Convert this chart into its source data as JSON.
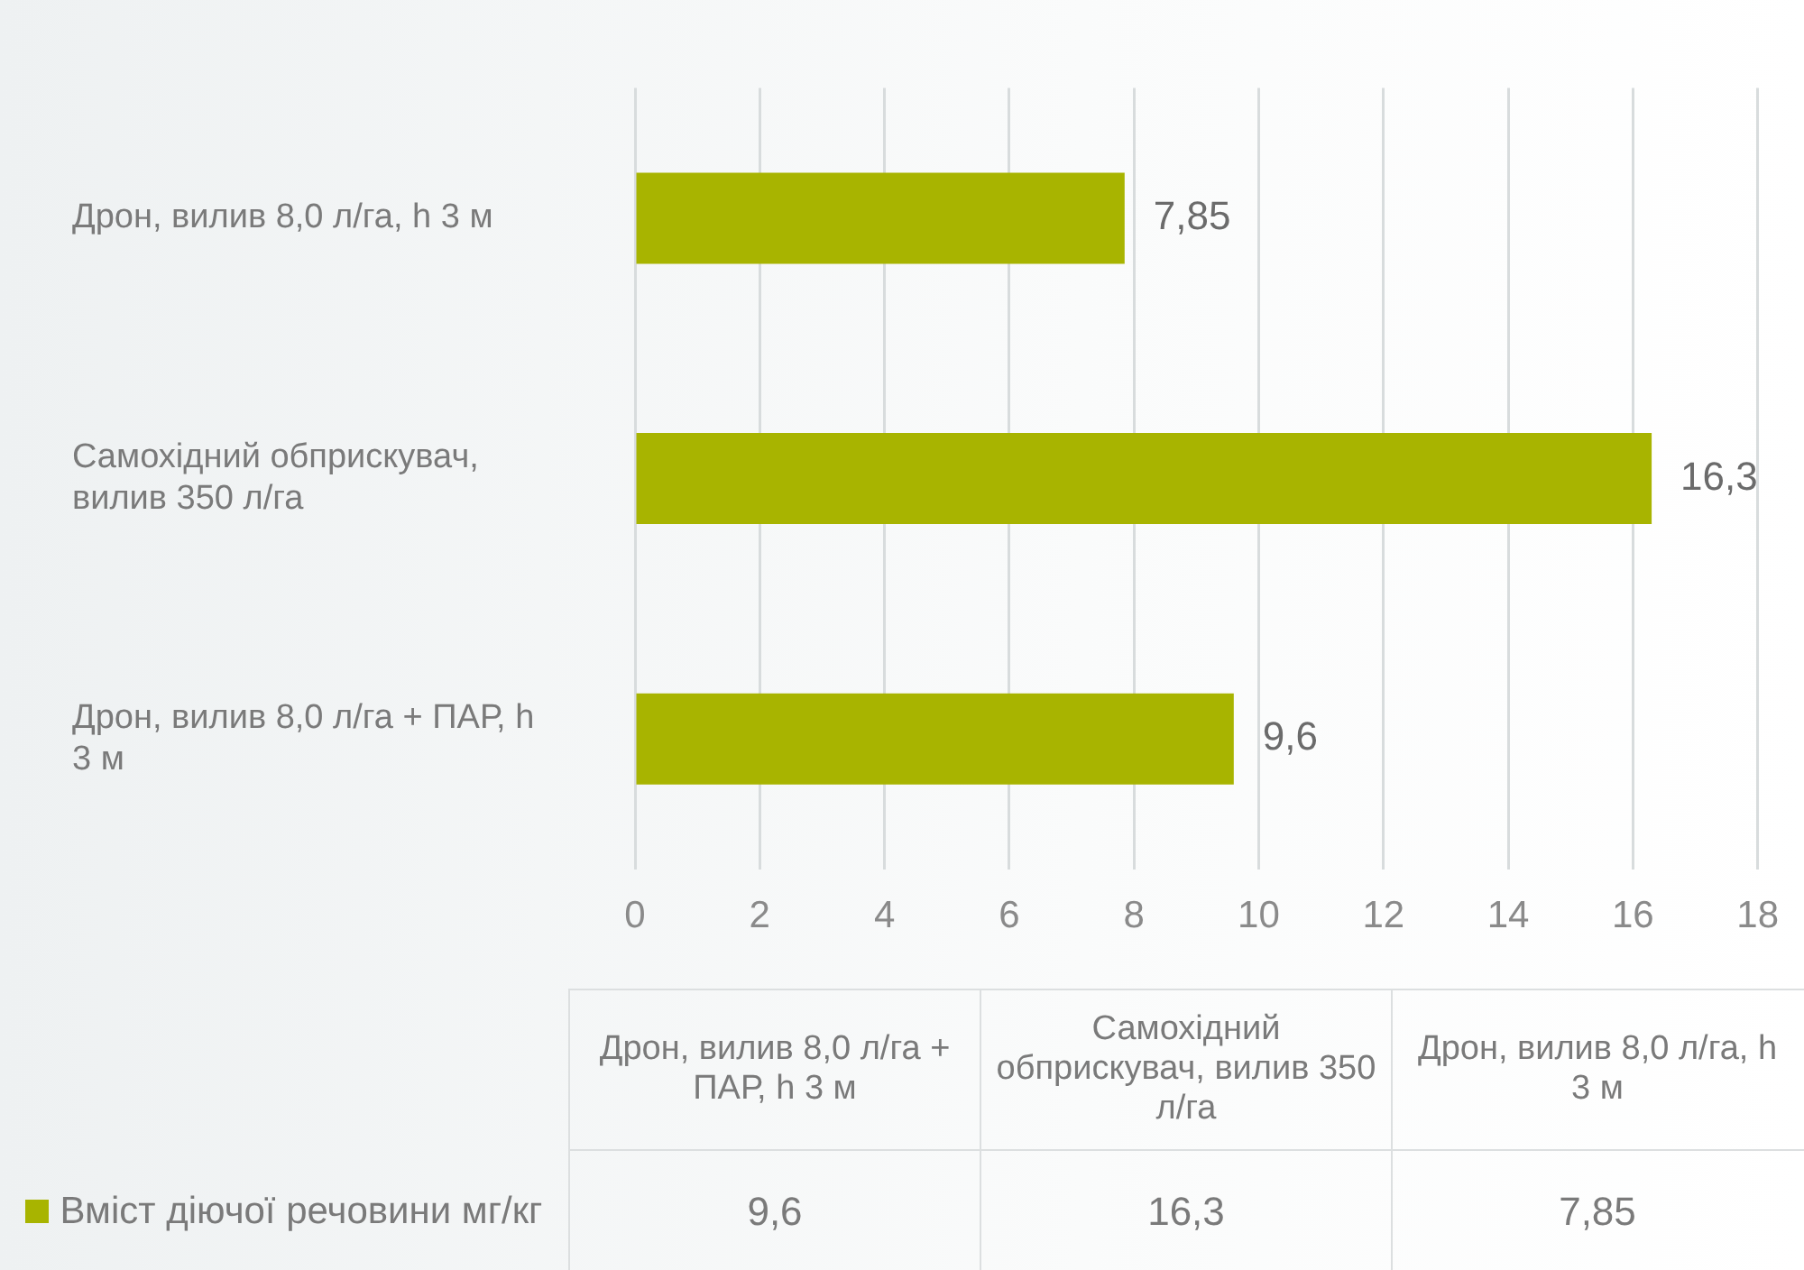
{
  "chart_data": {
    "type": "bar",
    "orientation": "horizontal",
    "categories": [
      "Дрон, вилив 8,0 л/га, h 3 м",
      "Самохідний обприскувач, вилив 350 л/га",
      "Дрон, вилив 8,0 л/га + ПАР, h 3 м"
    ],
    "series": [
      {
        "name": "Вміст діючої речовини мг/кг",
        "color": "#a8b400",
        "values": [
          7.85,
          16.3,
          9.6
        ],
        "value_labels": [
          "7,85",
          "16,3",
          "9,6"
        ]
      }
    ],
    "xlim": [
      0,
      18
    ],
    "xticks": [
      0,
      2,
      4,
      6,
      8,
      10,
      12,
      14,
      16,
      18
    ],
    "grid": "x",
    "legend": "bottom left"
  }
}
